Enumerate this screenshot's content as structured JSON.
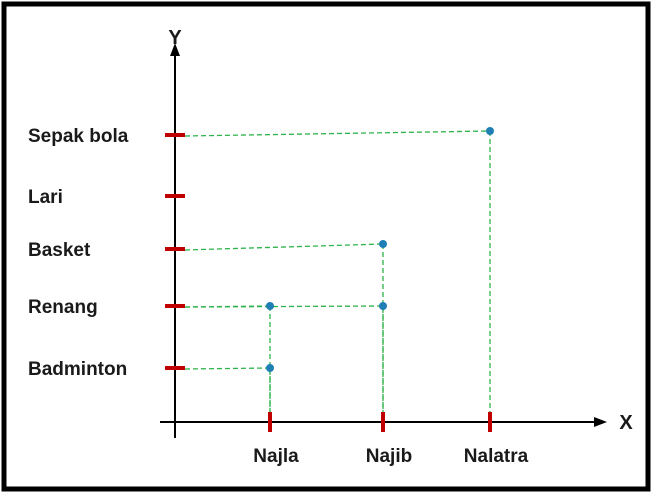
{
  "chart_data": {
    "type": "scatter",
    "xlabel": "X",
    "ylabel": "Y",
    "x_categories": [
      "Najla",
      "Najib",
      "Nalatra"
    ],
    "y_categories": [
      "Badminton",
      "Renang",
      "Basket",
      "Lari",
      "Sepak bola"
    ],
    "points": [
      {
        "x": "Najla",
        "y": "Badminton"
      },
      {
        "x": "Najla",
        "y": "Renang"
      },
      {
        "x": "Najib",
        "y": "Renang"
      },
      {
        "x": "Najib",
        "y": "Basket"
      },
      {
        "x": "Nalatra",
        "y": "Sepak bola"
      }
    ],
    "colors": {
      "axis": "#000000",
      "tick": "#c00000",
      "guide": "#2db34a",
      "point": "#1f7fb5",
      "frame": "#000000"
    }
  }
}
